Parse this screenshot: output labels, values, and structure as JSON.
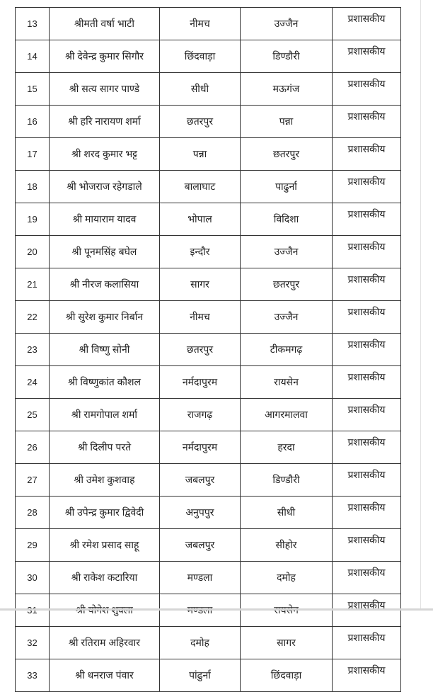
{
  "rows": [
    {
      "sn": "13",
      "name": "श्रीमती वर्षा भाटी",
      "from": "नीमच",
      "to": "उज्जैन",
      "reason": "प्रशासकीय"
    },
    {
      "sn": "14",
      "name": "श्री देवेन्द्र कुमार सिगौर",
      "from": "छिंदवाड़ा",
      "to": "डिण्डौरी",
      "reason": "प्रशासकीय"
    },
    {
      "sn": "15",
      "name": "श्री सत्य सागर पाण्डे",
      "from": "सीधी",
      "to": "मऊगंज",
      "reason": "प्रशासकीय"
    },
    {
      "sn": "16",
      "name": "श्री हरि नारायण शर्मा",
      "from": "छतरपुर",
      "to": "पन्ना",
      "reason": "प्रशासकीय"
    },
    {
      "sn": "17",
      "name": "श्री शरद कुमार भट्ट",
      "from": "पन्ना",
      "to": "छतरपुर",
      "reason": "प्रशासकीय"
    },
    {
      "sn": "18",
      "name": "श्री भोजराज रहेगडाले",
      "from": "बालाघाट",
      "to": "पाढुर्ना",
      "reason": "प्रशासकीय"
    },
    {
      "sn": "19",
      "name": "श्री मायाराम यादव",
      "from": "भोपाल",
      "to": "विदिशा",
      "reason": "प्रशासकीय"
    },
    {
      "sn": "20",
      "name": "श्री पूनमसिंह बघेल",
      "from": "इन्दौर",
      "to": "उज्जैन",
      "reason": "प्रशासकीय"
    },
    {
      "sn": "21",
      "name": "श्री नीरज कलासिया",
      "from": "सागर",
      "to": "छतरपुर",
      "reason": "प्रशासकीय"
    },
    {
      "sn": "22",
      "name": "श्री सुरेश कुमार निर्बान",
      "from": "नीमच",
      "to": "उज्जैन",
      "reason": "प्रशासकीय"
    },
    {
      "sn": "23",
      "name": "श्री विष्णु सोनी",
      "from": "छतरपुर",
      "to": "टीकमगढ़",
      "reason": "प्रशासकीय"
    },
    {
      "sn": "24",
      "name": "श्री विष्णुकांत कौशल",
      "from": "नर्मदापुरम",
      "to": "रायसेन",
      "reason": "प्रशासकीय"
    },
    {
      "sn": "25",
      "name": "श्री रामगोपाल शर्मा",
      "from": "राजगढ़",
      "to": "आगरमालवा",
      "reason": "प्रशासकीय"
    },
    {
      "sn": "26",
      "name": "श्री दिलीप परते",
      "from": "नर्मदापुरम",
      "to": "हरदा",
      "reason": "प्रशासकीय"
    },
    {
      "sn": "27",
      "name": "श्री उमेश कुशवाह",
      "from": "जबलपुर",
      "to": "डिण्डौरी",
      "reason": "प्रशासकीय"
    },
    {
      "sn": "28",
      "name": "श्री उपेन्द्र कुमार द्विवेदी",
      "from": "अनुपपुर",
      "to": "सीधी",
      "reason": "प्रशासकीय"
    },
    {
      "sn": "29",
      "name": "श्री रमेश प्रसाद साहू",
      "from": "जबलपुर",
      "to": "सीहोर",
      "reason": "प्रशासकीय"
    },
    {
      "sn": "30",
      "name": "श्री राकेश कटारिया",
      "from": "मण्डला",
      "to": "दमोह",
      "reason": "प्रशासकीय"
    },
    {
      "sn": "31",
      "name": "श्री योगेश शुक्ला",
      "from": "मण्डला",
      "to": "रायसेन",
      "reason": "प्रशासकीय"
    },
    {
      "sn": "32",
      "name": "श्री रतिराम अहिरवार",
      "from": "दमोह",
      "to": "सागर",
      "reason": "प्रशासकीय"
    },
    {
      "sn": "33",
      "name": "श्री धनराज पंवार",
      "from": "पांढुर्ना",
      "to": "छिंदवाड़ा",
      "reason": "प्रशासकीय"
    }
  ]
}
